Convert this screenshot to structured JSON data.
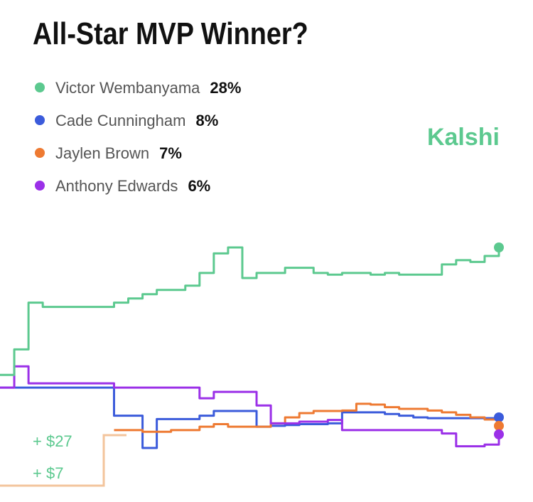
{
  "chart_data": {
    "type": "line",
    "title": "All-Star MVP Winner?",
    "brand": "Kalshi",
    "series": [
      {
        "name": "Victor Wembanyama",
        "color": "#5cc98f",
        "current": 28,
        "current_label": "28%",
        "values": [
          13,
          16,
          21.5,
          21,
          21,
          21,
          21,
          21,
          21.5,
          22,
          22.5,
          23,
          23,
          23.5,
          25,
          27.3,
          28,
          24.4,
          25,
          25,
          25.6,
          25.6,
          25,
          24.8,
          25,
          25,
          24.8,
          25,
          24.8,
          24.8,
          24.8,
          26,
          26.5,
          26.3,
          27,
          28
        ]
      },
      {
        "name": "Cade Cunningham",
        "color": "#3b5bdb",
        "current": 8,
        "current_label": "8%",
        "values": [
          11.5,
          11.5,
          11.5,
          11.5,
          11.5,
          11.5,
          11.5,
          11.5,
          8.2,
          8.2,
          4.4,
          7.8,
          7.8,
          7.8,
          8.2,
          8.75,
          8.75,
          8.75,
          6.9,
          7,
          7.1,
          7.2,
          7.2,
          7.3,
          8.6,
          8.6,
          8.6,
          8.4,
          8.2,
          8,
          7.9,
          7.9,
          7.9,
          7.9,
          7.9,
          8
        ]
      },
      {
        "name": "Jaylen Brown",
        "color": "#ee7a32",
        "current": 7,
        "current_label": "7%",
        "values": [
          null,
          null,
          null,
          null,
          null,
          null,
          null,
          null,
          6.5,
          6.5,
          6.3,
          6.3,
          6.5,
          6.5,
          6.9,
          7.2,
          6.9,
          6.9,
          6.9,
          7.3,
          8,
          8.5,
          8.75,
          8.75,
          8.8,
          9.6,
          9.5,
          9.2,
          9,
          9,
          8.8,
          8.6,
          8.3,
          8,
          7.75,
          7
        ]
      },
      {
        "name": "Anthony Edwards",
        "color": "#9b30e8",
        "current": 6,
        "current_label": "6%",
        "values": [
          11.5,
          14,
          12,
          12,
          12,
          12,
          12,
          12,
          11.5,
          11.5,
          11.5,
          11.5,
          11.5,
          11.5,
          10.25,
          11,
          11,
          11,
          9.4,
          7.3,
          7.3,
          7.5,
          7.5,
          7.7,
          6.5,
          6.5,
          6.5,
          6.5,
          6.5,
          6.5,
          6.5,
          6.1,
          4.6,
          4.6,
          4.8,
          6
        ]
      }
    ],
    "payouts": [
      {
        "value": 27,
        "label": "+ $27"
      },
      {
        "value": 7,
        "label": "+ $7"
      }
    ]
  }
}
